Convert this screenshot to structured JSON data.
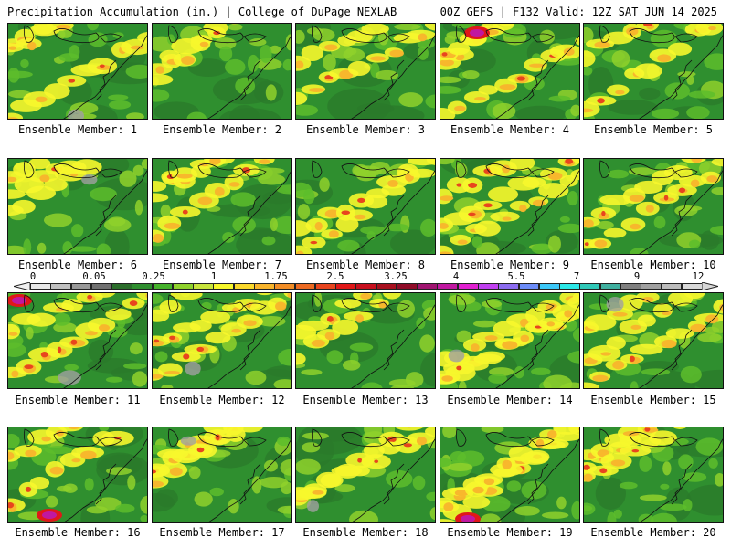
{
  "header": {
    "title_left": "Precipitation Accumulation (in.) | College of DuPage NEXLAB",
    "title_right": "00Z GEFS | F132 Valid: 12Z SAT JUN 14 2025"
  },
  "members": [
    {
      "label": "Ensemble Member: 1"
    },
    {
      "label": "Ensemble Member: 2"
    },
    {
      "label": "Ensemble Member: 3"
    },
    {
      "label": "Ensemble Member: 4"
    },
    {
      "label": "Ensemble Member: 5"
    },
    {
      "label": "Ensemble Member: 6"
    },
    {
      "label": "Ensemble Member: 7"
    },
    {
      "label": "Ensemble Member: 8"
    },
    {
      "label": "Ensemble Member: 9"
    },
    {
      "label": "Ensemble Member: 10"
    },
    {
      "label": "Ensemble Member: 11"
    },
    {
      "label": "Ensemble Member: 12"
    },
    {
      "label": "Ensemble Member: 13"
    },
    {
      "label": "Ensemble Member: 14"
    },
    {
      "label": "Ensemble Member: 15"
    },
    {
      "label": "Ensemble Member: 16"
    },
    {
      "label": "Ensemble Member: 17"
    },
    {
      "label": "Ensemble Member: 18"
    },
    {
      "label": "Ensemble Member: 19"
    },
    {
      "label": "Ensemble Member: 20"
    }
  ],
  "colorbar": {
    "tick_labels": [
      "0",
      "0.05",
      "0.25",
      "1",
      "1.75",
      "2.5",
      "3.25",
      "4",
      "5.5",
      "7",
      "9",
      "12"
    ],
    "colors": [
      "#e8e8e8",
      "#c0c0c0",
      "#989898",
      "#707070",
      "#2c6e2c",
      "#2f8f2f",
      "#46b22c",
      "#8fd12c",
      "#c8e43c",
      "#f7f72c",
      "#fad82c",
      "#f8b42c",
      "#f28d26",
      "#ec6a22",
      "#e8451e",
      "#e01818",
      "#c8101e",
      "#a8101e",
      "#900c28",
      "#a01470",
      "#c018a0",
      "#e020d0",
      "#c040f0",
      "#8c6cf0",
      "#6c8cf8",
      "#3cc8f8",
      "#2ce8e8",
      "#30c8b8",
      "#40b0a0",
      "#808080",
      "#a0a0a0",
      "#bcbcbc",
      "#d8d8d8"
    ]
  }
}
